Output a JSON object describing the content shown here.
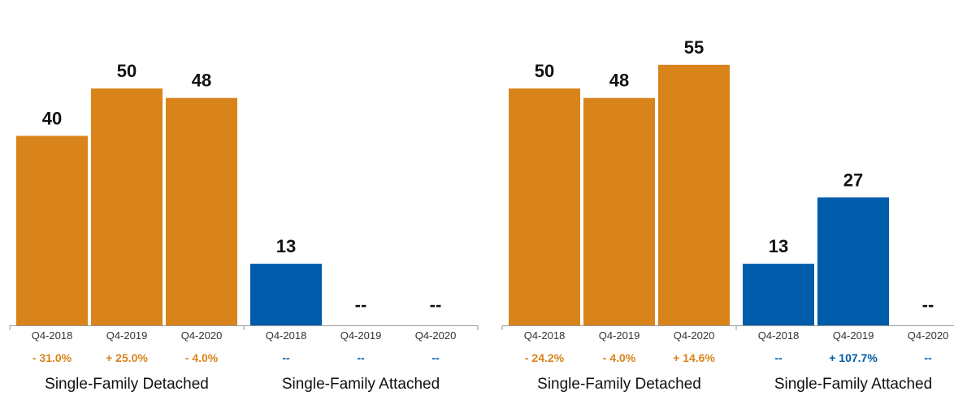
{
  "chart_data": [
    {
      "type": "bar",
      "groups": [
        {
          "name": "Single-Family Detached",
          "color": "#D9831B",
          "categories": [
            "Q4-2018",
            "Q4-2019",
            "Q4-2020"
          ],
          "values": [
            40,
            50,
            48
          ],
          "value_labels": [
            "40",
            "50",
            "48"
          ],
          "changes": [
            "- 31.0%",
            "+ 25.0%",
            "- 4.0%"
          ]
        },
        {
          "name": "Single-Family Attached",
          "color": "#005BAA",
          "categories": [
            "Q4-2018",
            "Q4-2019",
            "Q4-2020"
          ],
          "values": [
            13,
            null,
            null
          ],
          "value_labels": [
            "13",
            "--",
            "--"
          ],
          "changes": [
            "--",
            "--",
            "--"
          ]
        }
      ],
      "ylim": [
        0,
        62
      ]
    },
    {
      "type": "bar",
      "groups": [
        {
          "name": "Single-Family Detached",
          "color": "#D9831B",
          "categories": [
            "Q4-2018",
            "Q4-2019",
            "Q4-2020"
          ],
          "values": [
            50,
            48,
            55
          ],
          "value_labels": [
            "50",
            "48",
            "55"
          ],
          "changes": [
            "- 24.2%",
            "- 4.0%",
            "+ 14.6%"
          ]
        },
        {
          "name": "Single-Family Attached",
          "color": "#005BAA",
          "categories": [
            "Q4-2018",
            "Q4-2019",
            "Q4-2020"
          ],
          "values": [
            13,
            27,
            null
          ],
          "value_labels": [
            "13",
            "27",
            "--"
          ],
          "changes": [
            "--",
            "+ 107.7%",
            "--"
          ]
        }
      ],
      "ylim": [
        0,
        62
      ]
    }
  ]
}
